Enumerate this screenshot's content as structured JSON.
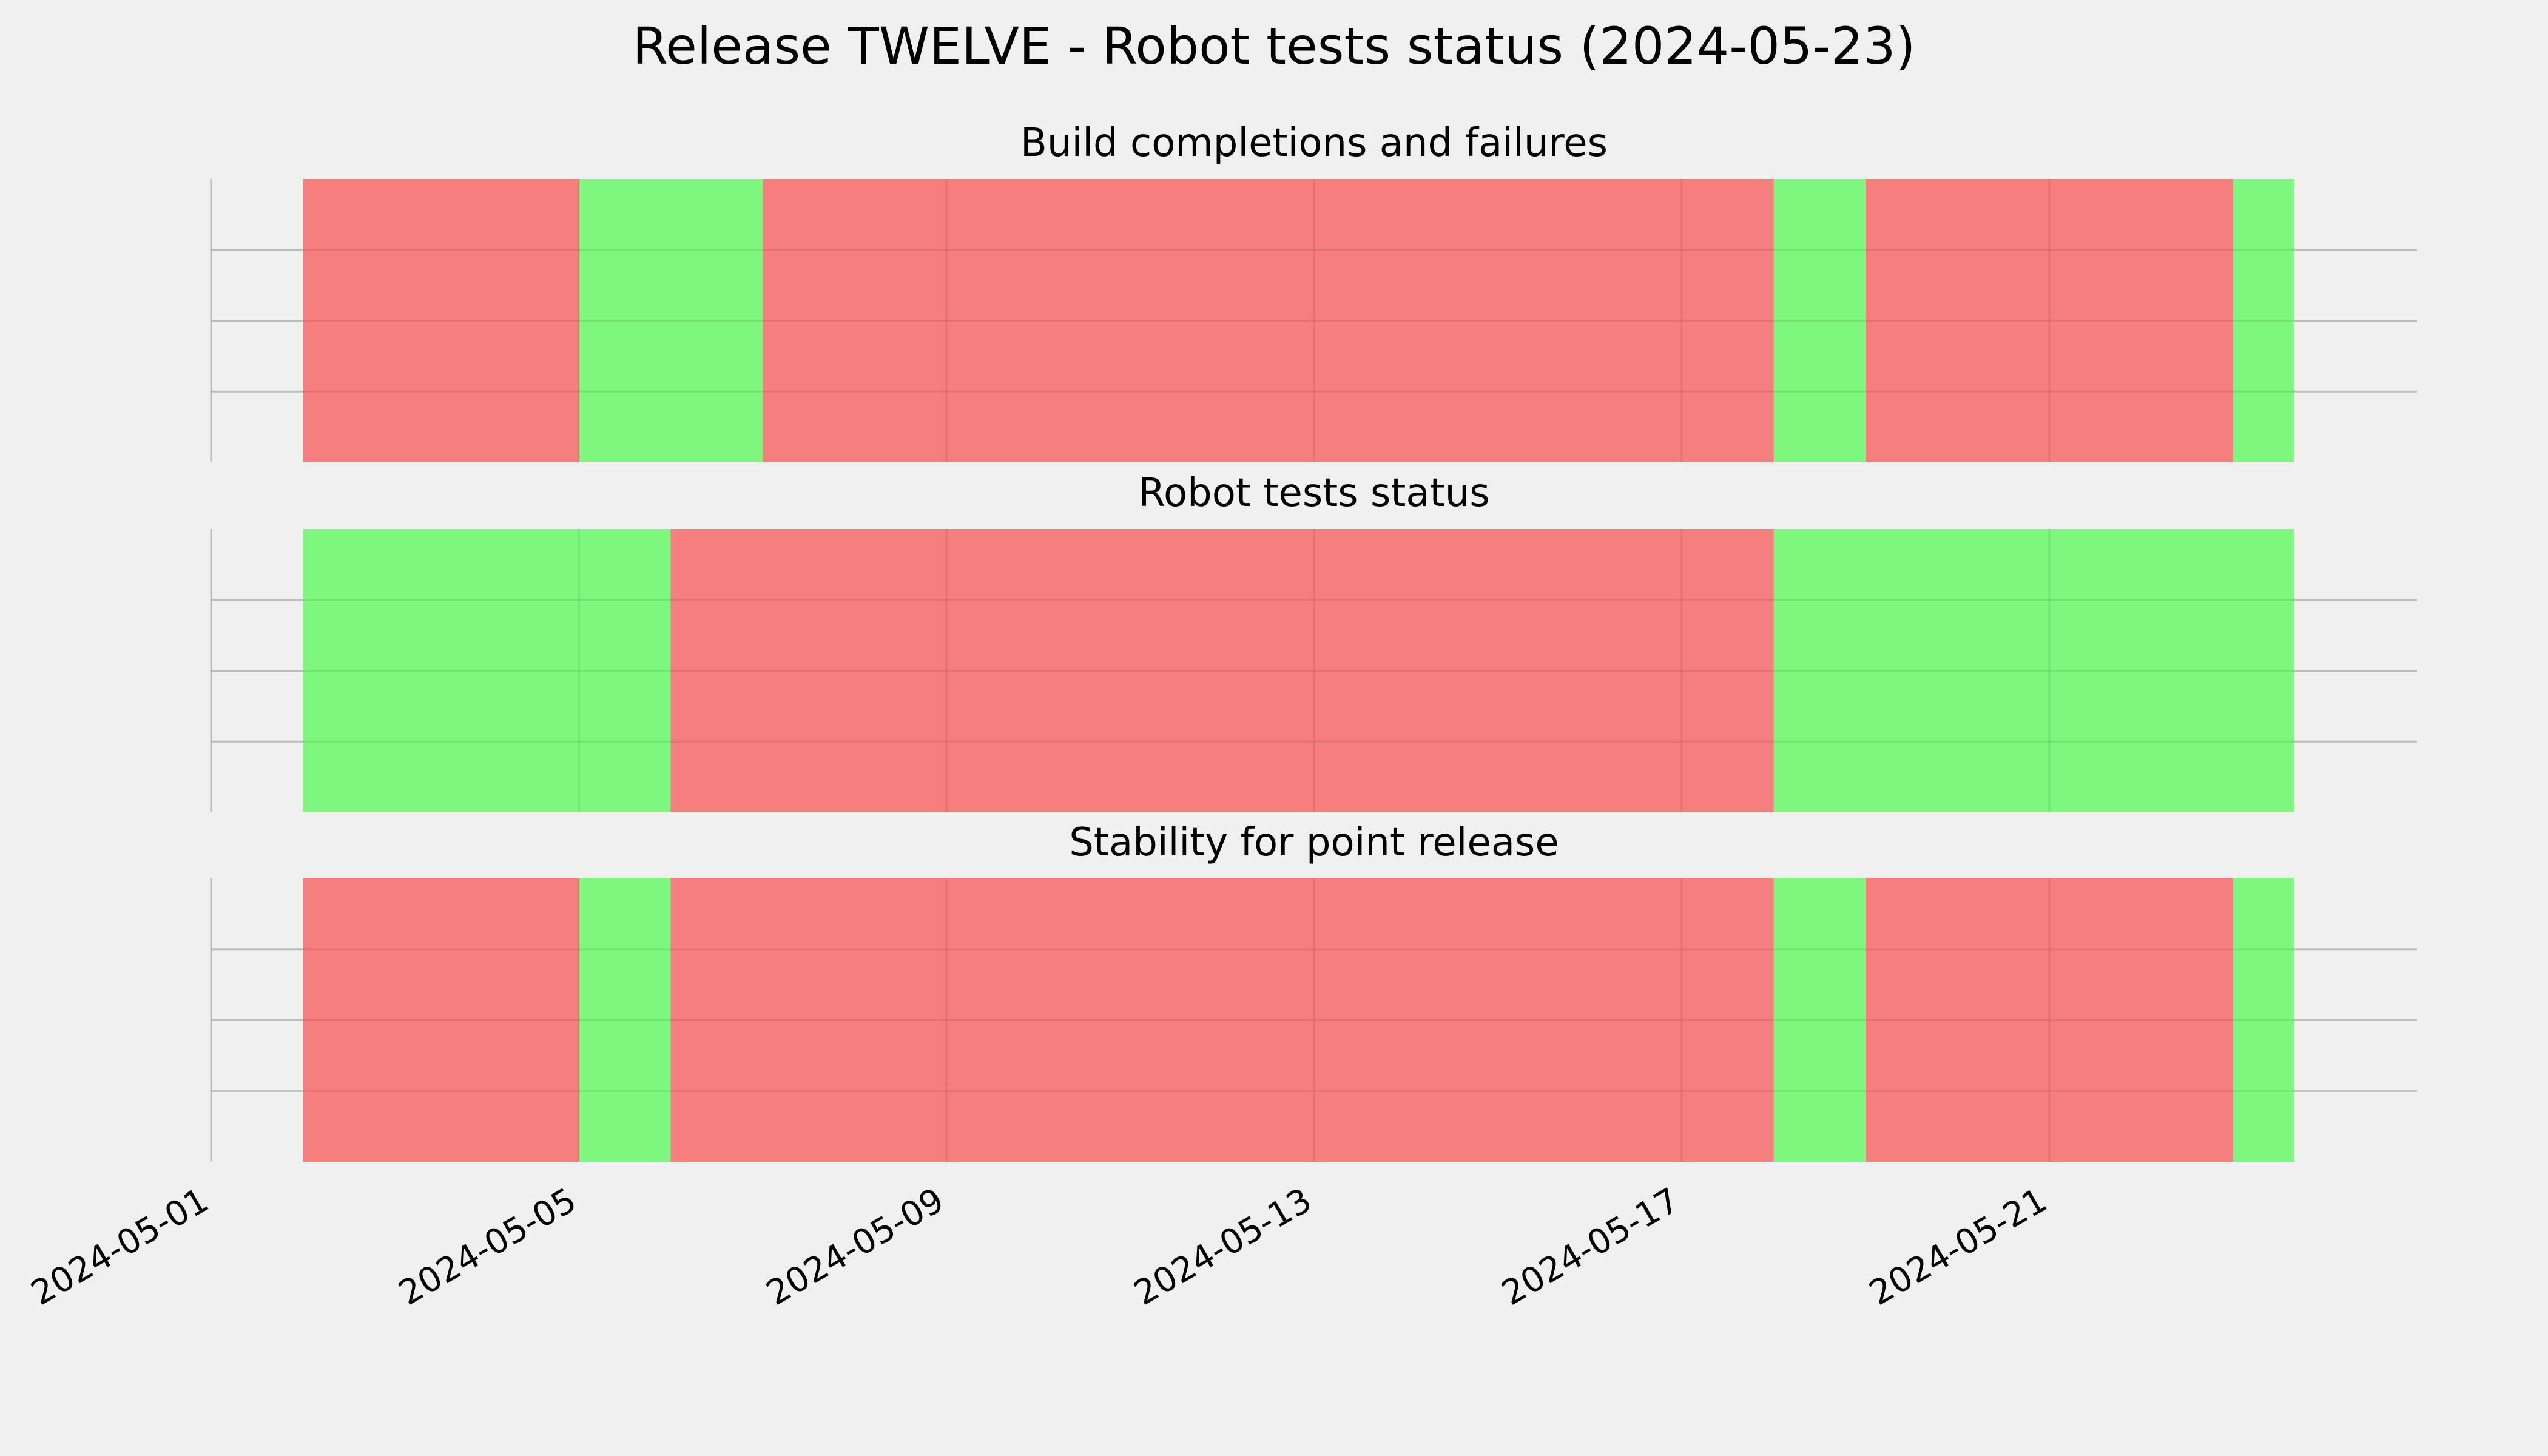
{
  "chart_data": {
    "type": "timeline",
    "title": "Release TWELVE - Robot tests status (2024-05-23)",
    "x_axis": {
      "type": "date",
      "range": [
        "2024-05-01",
        "2024-05-25"
      ],
      "ticks": [
        "2024-05-01",
        "2024-05-05",
        "2024-05-09",
        "2024-05-13",
        "2024-05-17",
        "2024-05-21"
      ]
    },
    "grid": true,
    "colors": {
      "pass": "#77f777",
      "fail": "#f77777",
      "background": "#f0f0f0",
      "grid": "#cbcbcb"
    },
    "panels": [
      {
        "title": "Build completions and failures",
        "segments": [
          {
            "start": "2024-05-02",
            "end": "2024-05-05",
            "status": "fail"
          },
          {
            "start": "2024-05-05",
            "end": "2024-05-07",
            "status": "pass"
          },
          {
            "start": "2024-05-07",
            "end": "2024-05-18",
            "status": "fail"
          },
          {
            "start": "2024-05-18",
            "end": "2024-05-19",
            "status": "pass"
          },
          {
            "start": "2024-05-19",
            "end": "2024-05-23",
            "status": "fail"
          },
          {
            "start": "2024-05-23",
            "end": "2024-05-23T16:00",
            "status": "pass"
          }
        ]
      },
      {
        "title": "Robot tests status",
        "segments": [
          {
            "start": "2024-05-02",
            "end": "2024-05-06",
            "status": "pass"
          },
          {
            "start": "2024-05-06",
            "end": "2024-05-18",
            "status": "fail"
          },
          {
            "start": "2024-05-18",
            "end": "2024-05-23T16:00",
            "status": "pass"
          }
        ]
      },
      {
        "title": "Stability for point release",
        "segments": [
          {
            "start": "2024-05-02",
            "end": "2024-05-05",
            "status": "fail"
          },
          {
            "start": "2024-05-05",
            "end": "2024-05-06",
            "status": "pass"
          },
          {
            "start": "2024-05-06",
            "end": "2024-05-18",
            "status": "fail"
          },
          {
            "start": "2024-05-18",
            "end": "2024-05-19",
            "status": "pass"
          },
          {
            "start": "2024-05-19",
            "end": "2024-05-23",
            "status": "fail"
          },
          {
            "start": "2024-05-23",
            "end": "2024-05-23T16:00",
            "status": "pass"
          }
        ]
      }
    ]
  }
}
